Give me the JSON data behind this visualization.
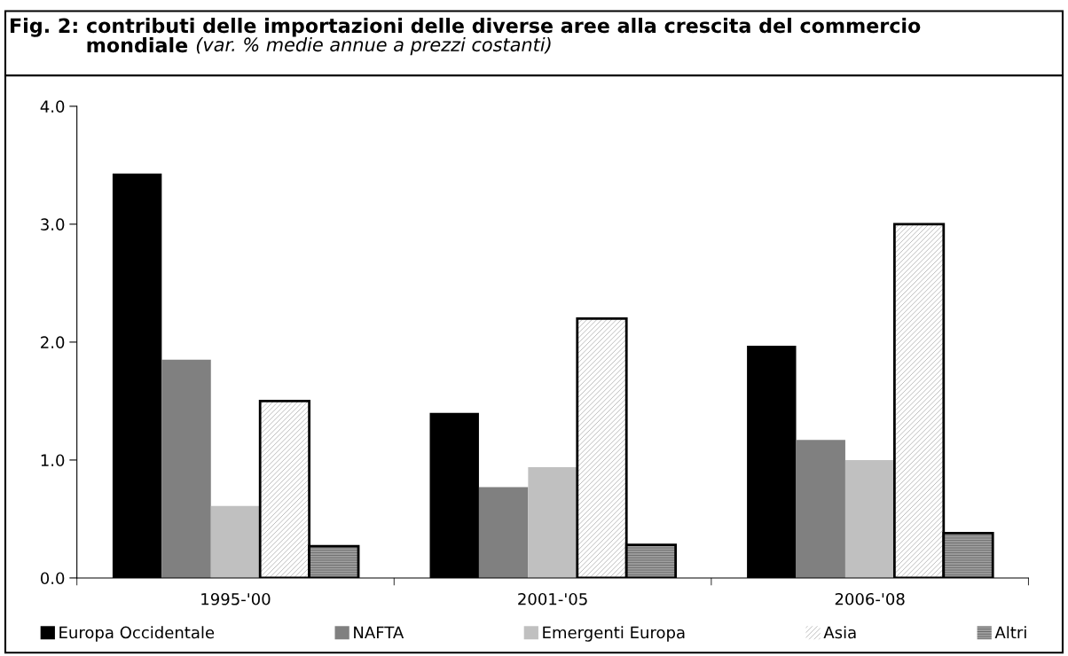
{
  "chart_data": {
    "type": "bar",
    "title": "Fig. 2: contributi delle importazioni delle diverse aree alla crescita del commercio mondiale",
    "subtitle": "(var. % medie annue a prezzi costanti)",
    "categories": [
      "1995-'00",
      "2001-'05",
      "2006-'08"
    ],
    "series": [
      {
        "name": "Europa Occidentale",
        "color": "#000000",
        "values": [
          3.43,
          1.4,
          1.97
        ]
      },
      {
        "name": "NAFTA",
        "color": "#808080",
        "values": [
          1.85,
          0.77,
          1.17
        ]
      },
      {
        "name": "Emergenti Europa",
        "color": "#c0c0c0",
        "values": [
          0.61,
          0.94,
          1.0
        ]
      },
      {
        "name": "Asia",
        "color": "#ffffff",
        "values": [
          1.5,
          2.2,
          3.0
        ]
      },
      {
        "name": "Altri",
        "color": "#a0a0a0",
        "values": [
          0.27,
          0.28,
          0.38
        ]
      }
    ],
    "ylim": [
      0.0,
      4.0
    ],
    "yticks": [
      {
        "value": 0,
        "label": "0.0"
      },
      {
        "value": 1,
        "label": "1.0"
      },
      {
        "value": 2,
        "label": "2.0"
      },
      {
        "value": 3,
        "label": "3.0"
      },
      {
        "value": 4,
        "label": "4.0"
      }
    ],
    "grid": false,
    "legend": "bottom"
  }
}
